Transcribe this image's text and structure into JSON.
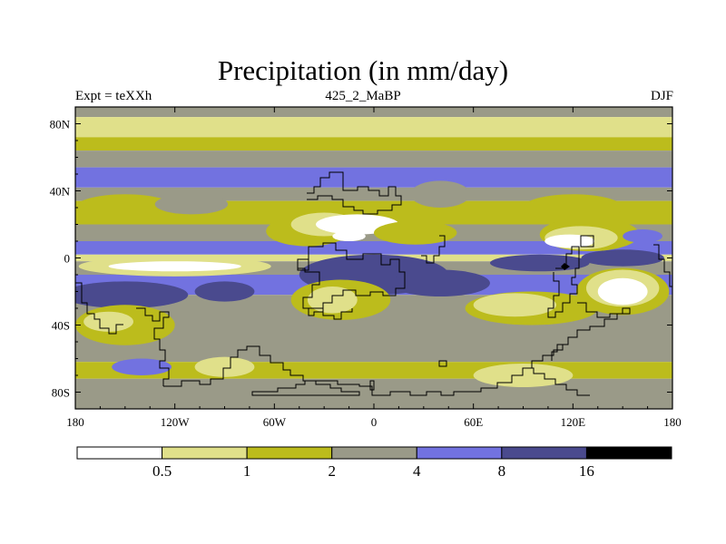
{
  "chart_data": {
    "type": "heatmap",
    "title": "Precipitation (in mm/day)",
    "subtitle_left": "Expt = teXXh",
    "subtitle_center": "425_2_MaBP",
    "subtitle_right": "DJF",
    "x_ticks": [
      {
        "value": -180,
        "label": "180"
      },
      {
        "value": -120,
        "label": "120W"
      },
      {
        "value": -60,
        "label": "60W"
      },
      {
        "value": 0,
        "label": "0"
      },
      {
        "value": 60,
        "label": "60E"
      },
      {
        "value": 120,
        "label": "120E"
      },
      {
        "value": 180,
        "label": "180"
      }
    ],
    "y_ticks": [
      {
        "value": 80,
        "label": "80N"
      },
      {
        "value": 40,
        "label": "40N"
      },
      {
        "value": 0,
        "label": "0"
      },
      {
        "value": -40,
        "label": "40S"
      },
      {
        "value": -80,
        "label": "80S"
      }
    ],
    "xlim": [
      -180,
      180
    ],
    "ylim": [
      -90,
      90
    ],
    "levels": [
      "0.5",
      "1",
      "2",
      "4",
      "8",
      "16"
    ],
    "colors": [
      "#ffffff",
      "#e0e08a",
      "#bcbc1c",
      "#9a9a88",
      "#7272e0",
      "#4a4a8e",
      "#000000"
    ],
    "zonal_bands": [
      {
        "lat_max": 90,
        "lat_min": 84,
        "bin": 3
      },
      {
        "lat_max": 84,
        "lat_min": 72,
        "bin": 1
      },
      {
        "lat_max": 72,
        "lat_min": 64,
        "bin": 2
      },
      {
        "lat_max": 64,
        "lat_min": 54,
        "bin": 3
      },
      {
        "lat_max": 54,
        "lat_min": 42,
        "bin": 4
      },
      {
        "lat_max": 42,
        "lat_min": 34,
        "bin": 3
      },
      {
        "lat_max": 34,
        "lat_min": 20,
        "bin": 2
      },
      {
        "lat_max": 20,
        "lat_min": 10,
        "bin": 3
      },
      {
        "lat_max": 10,
        "lat_min": 2,
        "bin": 4
      },
      {
        "lat_max": 2,
        "lat_min": -2,
        "bin": 1
      },
      {
        "lat_max": -2,
        "lat_min": -10,
        "bin": 3
      },
      {
        "lat_max": -10,
        "lat_min": -22,
        "bin": 4
      },
      {
        "lat_max": -22,
        "lat_min": -50,
        "bin": 3
      },
      {
        "lat_max": -50,
        "lat_min": -62,
        "bin": 3
      },
      {
        "lat_max": -62,
        "lat_min": -72,
        "bin": 2
      },
      {
        "lat_max": -72,
        "lat_min": -90,
        "bin": 3
      }
    ],
    "patches": [
      {
        "lon": -120,
        "lat": -5,
        "rlon": 58,
        "rlat": 6,
        "bin": 1
      },
      {
        "lon": -120,
        "lat": -5,
        "rlon": 40,
        "rlat": 3,
        "bin": 0
      },
      {
        "lon": -150,
        "lat": -22,
        "rlon": 38,
        "rlat": 8,
        "bin": 5
      },
      {
        "lon": -90,
        "lat": -20,
        "rlon": 18,
        "rlat": 6,
        "bin": 5
      },
      {
        "lon": 0,
        "lat": -10,
        "rlon": 45,
        "rlat": 12,
        "bin": 5
      },
      {
        "lon": 40,
        "lat": -15,
        "rlon": 30,
        "rlat": 8,
        "bin": 5
      },
      {
        "lon": 100,
        "lat": -3,
        "rlon": 30,
        "rlat": 5,
        "bin": 5
      },
      {
        "lon": 150,
        "lat": 0,
        "rlon": 25,
        "rlat": 5,
        "bin": 5
      },
      {
        "lon": -40,
        "lat": 16,
        "rlon": 25,
        "rlat": 9,
        "bin": 2
      },
      {
        "lon": -30,
        "lat": 20,
        "rlon": 20,
        "rlat": 7,
        "bin": 1
      },
      {
        "lon": -10,
        "lat": 20,
        "rlon": 25,
        "rlat": 6,
        "bin": 0
      },
      {
        "lon": -15,
        "lat": 13,
        "rlon": 10,
        "rlat": 3,
        "bin": 0
      },
      {
        "lon": 25,
        "lat": 15,
        "rlon": 25,
        "rlat": 7,
        "bin": 2
      },
      {
        "lon": 130,
        "lat": 14,
        "rlon": 30,
        "rlat": 10,
        "bin": 2
      },
      {
        "lon": 125,
        "lat": 12,
        "rlon": 22,
        "rlat": 7,
        "bin": 1
      },
      {
        "lon": 118,
        "lat": 10,
        "rlon": 15,
        "rlat": 4,
        "bin": 0
      },
      {
        "lon": 162,
        "lat": 13,
        "rlon": 12,
        "rlat": 4,
        "bin": 4
      },
      {
        "lon": 150,
        "lat": -20,
        "rlon": 28,
        "rlat": 14,
        "bin": 2
      },
      {
        "lon": 150,
        "lat": -18,
        "rlon": 22,
        "rlat": 11,
        "bin": 1
      },
      {
        "lon": 150,
        "lat": -20,
        "rlon": 15,
        "rlat": 8,
        "bin": 0
      },
      {
        "lon": -20,
        "lat": -25,
        "rlon": 30,
        "rlat": 12,
        "bin": 2
      },
      {
        "lon": -25,
        "lat": -25,
        "rlon": 15,
        "rlat": 8,
        "bin": 1
      },
      {
        "lon": 95,
        "lat": -30,
        "rlon": 40,
        "rlat": 10,
        "bin": 2
      },
      {
        "lon": 85,
        "lat": -28,
        "rlon": 25,
        "rlat": 7,
        "bin": 1
      },
      {
        "lon": -150,
        "lat": -40,
        "rlon": 30,
        "rlat": 12,
        "bin": 2
      },
      {
        "lon": -160,
        "lat": -38,
        "rlon": 15,
        "rlat": 6,
        "bin": 1
      },
      {
        "lon": -150,
        "lat": 30,
        "rlon": 30,
        "rlat": 8,
        "bin": 2
      },
      {
        "lon": -110,
        "lat": 32,
        "rlon": 22,
        "rlat": 6,
        "bin": 3
      },
      {
        "lon": 120,
        "lat": 30,
        "rlon": 30,
        "rlat": 8,
        "bin": 2
      },
      {
        "lon": 40,
        "lat": 38,
        "rlon": 18,
        "rlat": 8,
        "bin": 3
      },
      {
        "lon": -90,
        "lat": -65,
        "rlon": 18,
        "rlat": 6,
        "bin": 1
      },
      {
        "lon": 90,
        "lat": -70,
        "rlon": 30,
        "rlat": 7,
        "bin": 1
      },
      {
        "lon": -140,
        "lat": -65,
        "rlon": 18,
        "rlat": 5,
        "bin": 4
      },
      {
        "lon": -30,
        "lat": -85,
        "rlon": 100,
        "rlat": 4,
        "bin": 3
      }
    ]
  }
}
